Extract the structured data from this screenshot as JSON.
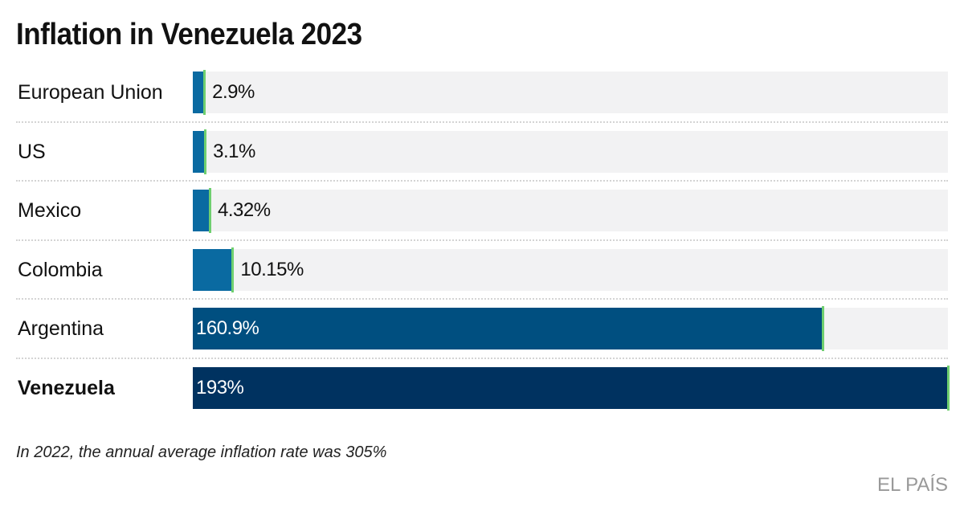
{
  "chart_data": {
    "type": "bar",
    "orientation": "horizontal",
    "title": "Inflation in Venezuela 2023",
    "categories": [
      "European Union",
      "US",
      "Mexico",
      "Colombia",
      "Argentina",
      "Venezuela"
    ],
    "values": [
      2.9,
      3.1,
      4.32,
      10.15,
      160.9,
      193
    ],
    "value_labels": [
      "2.9%",
      "3.1%",
      "4.32%",
      "10.15%",
      "160.9%",
      "193%"
    ],
    "highlight": "Venezuela",
    "xlim": [
      0,
      193
    ],
    "unit": "%",
    "note": "In 2022, the annual average inflation rate was 305%",
    "source": "EL PAÍS",
    "colors": [
      "#0a6aa1",
      "#0a6aa1",
      "#0a6aa1",
      "#0a6aa1",
      "#004f80",
      "#003260"
    ],
    "cap_color": "#6fcf6f",
    "track_color": "#f2f2f3"
  }
}
